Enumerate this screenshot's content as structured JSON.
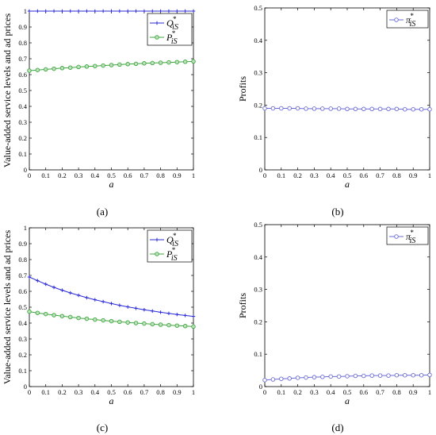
{
  "figure": {
    "captions": [
      "(a)",
      "(b)",
      "(c)",
      "(d)"
    ]
  },
  "colors": {
    "Q": "#2b2bd9",
    "P": "#3ea83e",
    "pi": "#6c6cd6",
    "marker_fill_P": "#bfe0bf",
    "marker_fill_pi": "#ffffff",
    "axis": "#000000"
  },
  "chart_data": [
    {
      "type": "line",
      "caption": "(a)",
      "title": "",
      "xlabel": "a",
      "ylabel": "Value-added service levels and ad prices",
      "xlim": [
        0,
        1
      ],
      "ylim": [
        0,
        1
      ],
      "xticks": [
        "0",
        "0.1",
        "0.2",
        "0.3",
        "0.4",
        "0.5",
        "0.6",
        "0.7",
        "0.8",
        "0.9",
        "1"
      ],
      "yticks": [
        "0",
        "0.1",
        "0.2",
        "0.3",
        "0.4",
        "0.5",
        "0.6",
        "0.7",
        "0.8",
        "0.9",
        "1"
      ],
      "grid": false,
      "legend_position": "top-right",
      "x": [
        0,
        0.05,
        0.1,
        0.15,
        0.2,
        0.25,
        0.3,
        0.35,
        0.4,
        0.45,
        0.5,
        0.55,
        0.6,
        0.65,
        0.7,
        0.75,
        0.8,
        0.85,
        0.9,
        0.95,
        1
      ],
      "series": [
        {
          "name": "Q",
          "sub": "iS",
          "sup": "*",
          "marker": "plus",
          "color_key": "Q",
          "values": [
            1,
            1,
            1,
            1,
            1,
            1,
            1,
            1,
            1,
            1,
            1,
            1,
            1,
            1,
            1,
            1,
            1,
            1,
            1,
            1,
            1
          ]
        },
        {
          "name": "P",
          "sub": "iS",
          "sup": "*",
          "marker": "circle",
          "color_key": "P",
          "values": [
            0.625,
            0.629,
            0.633,
            0.637,
            0.641,
            0.644,
            0.648,
            0.651,
            0.654,
            0.657,
            0.66,
            0.663,
            0.666,
            0.668,
            0.671,
            0.673,
            0.675,
            0.677,
            0.679,
            0.681,
            0.683
          ]
        }
      ]
    },
    {
      "type": "line",
      "caption": "(b)",
      "title": "",
      "xlabel": "a",
      "ylabel": "Profits",
      "xlim": [
        0,
        1
      ],
      "ylim": [
        0,
        0.5
      ],
      "xticks": [
        "0",
        "0.1",
        "0.2",
        "0.3",
        "0.4",
        "0.5",
        "0.6",
        "0.7",
        "0.8",
        "0.9",
        "1"
      ],
      "yticks": [
        "0",
        "0.1",
        "0.2",
        "0.3",
        "0.4",
        "0.5"
      ],
      "ytick_values": [
        0,
        0.1,
        0.2,
        0.3,
        0.4,
        0.5
      ],
      "grid": false,
      "legend_position": "top-right",
      "x": [
        0,
        0.05,
        0.1,
        0.15,
        0.2,
        0.25,
        0.3,
        0.35,
        0.4,
        0.45,
        0.5,
        0.55,
        0.6,
        0.65,
        0.7,
        0.75,
        0.8,
        0.85,
        0.9,
        0.95,
        1
      ],
      "series": [
        {
          "name": "π",
          "sub": "iS",
          "sup": "*",
          "marker": "circle",
          "color_key": "pi",
          "values": [
            0.19,
            0.19,
            0.19,
            0.19,
            0.19,
            0.189,
            0.189,
            0.189,
            0.189,
            0.189,
            0.188,
            0.188,
            0.188,
            0.188,
            0.188,
            0.188,
            0.188,
            0.187,
            0.187,
            0.187,
            0.187
          ]
        }
      ]
    },
    {
      "type": "line",
      "caption": "(c)",
      "title": "",
      "xlabel": "a",
      "ylabel": "Value-added service levels and ad prices",
      "xlim": [
        0,
        1
      ],
      "ylim": [
        0,
        1
      ],
      "xticks": [
        "0",
        "0.1",
        "0.2",
        "0.3",
        "0.4",
        "0.5",
        "0.6",
        "0.7",
        "0.8",
        "0.9",
        "1"
      ],
      "yticks": [
        "0",
        "0.1",
        "0.2",
        "0.3",
        "0.4",
        "0.5",
        "0.6",
        "0.7",
        "0.8",
        "0.9",
        "1"
      ],
      "grid": false,
      "legend_position": "top-right",
      "x": [
        0,
        0.05,
        0.1,
        0.15,
        0.2,
        0.25,
        0.3,
        0.35,
        0.4,
        0.45,
        0.5,
        0.55,
        0.6,
        0.65,
        0.7,
        0.75,
        0.8,
        0.85,
        0.9,
        0.95,
        1
      ],
      "series": [
        {
          "name": "Q",
          "sub": "iS",
          "sup": "*",
          "marker": "plus",
          "color_key": "Q",
          "values": [
            0.69,
            0.667,
            0.645,
            0.625,
            0.607,
            0.59,
            0.575,
            0.56,
            0.547,
            0.535,
            0.523,
            0.512,
            0.502,
            0.493,
            0.484,
            0.476,
            0.468,
            0.461,
            0.454,
            0.448,
            0.442
          ]
        },
        {
          "name": "P",
          "sub": "iS",
          "sup": "*",
          "marker": "circle",
          "color_key": "P",
          "values": [
            0.472,
            0.464,
            0.457,
            0.45,
            0.444,
            0.438,
            0.432,
            0.427,
            0.422,
            0.417,
            0.412,
            0.408,
            0.404,
            0.4,
            0.397,
            0.393,
            0.39,
            0.387,
            0.384,
            0.381,
            0.378
          ]
        }
      ]
    },
    {
      "type": "line",
      "caption": "(d)",
      "title": "",
      "xlabel": "a",
      "ylabel": "Profits",
      "xlim": [
        0,
        1
      ],
      "ylim": [
        0,
        0.5
      ],
      "xticks": [
        "0",
        "0.1",
        "0.2",
        "0.3",
        "0.4",
        "0.5",
        "0.6",
        "0.7",
        "0.8",
        "0.9",
        "1"
      ],
      "yticks": [
        "0",
        "0.1",
        "0.2",
        "0.3",
        "0.4",
        "0.5"
      ],
      "ytick_values": [
        0,
        0.1,
        0.2,
        0.3,
        0.4,
        0.5
      ],
      "grid": false,
      "legend_position": "top-right",
      "x": [
        0,
        0.05,
        0.1,
        0.15,
        0.2,
        0.25,
        0.3,
        0.35,
        0.4,
        0.45,
        0.5,
        0.55,
        0.6,
        0.65,
        0.7,
        0.75,
        0.8,
        0.85,
        0.9,
        0.95,
        1
      ],
      "series": [
        {
          "name": "π",
          "sub": "iS",
          "sup": "*",
          "marker": "circle",
          "color_key": "pi",
          "values": [
            0.02,
            0.022,
            0.024,
            0.025,
            0.027,
            0.028,
            0.029,
            0.03,
            0.031,
            0.031,
            0.032,
            0.033,
            0.033,
            0.034,
            0.034,
            0.034,
            0.035,
            0.035,
            0.035,
            0.035,
            0.036
          ]
        }
      ]
    }
  ]
}
